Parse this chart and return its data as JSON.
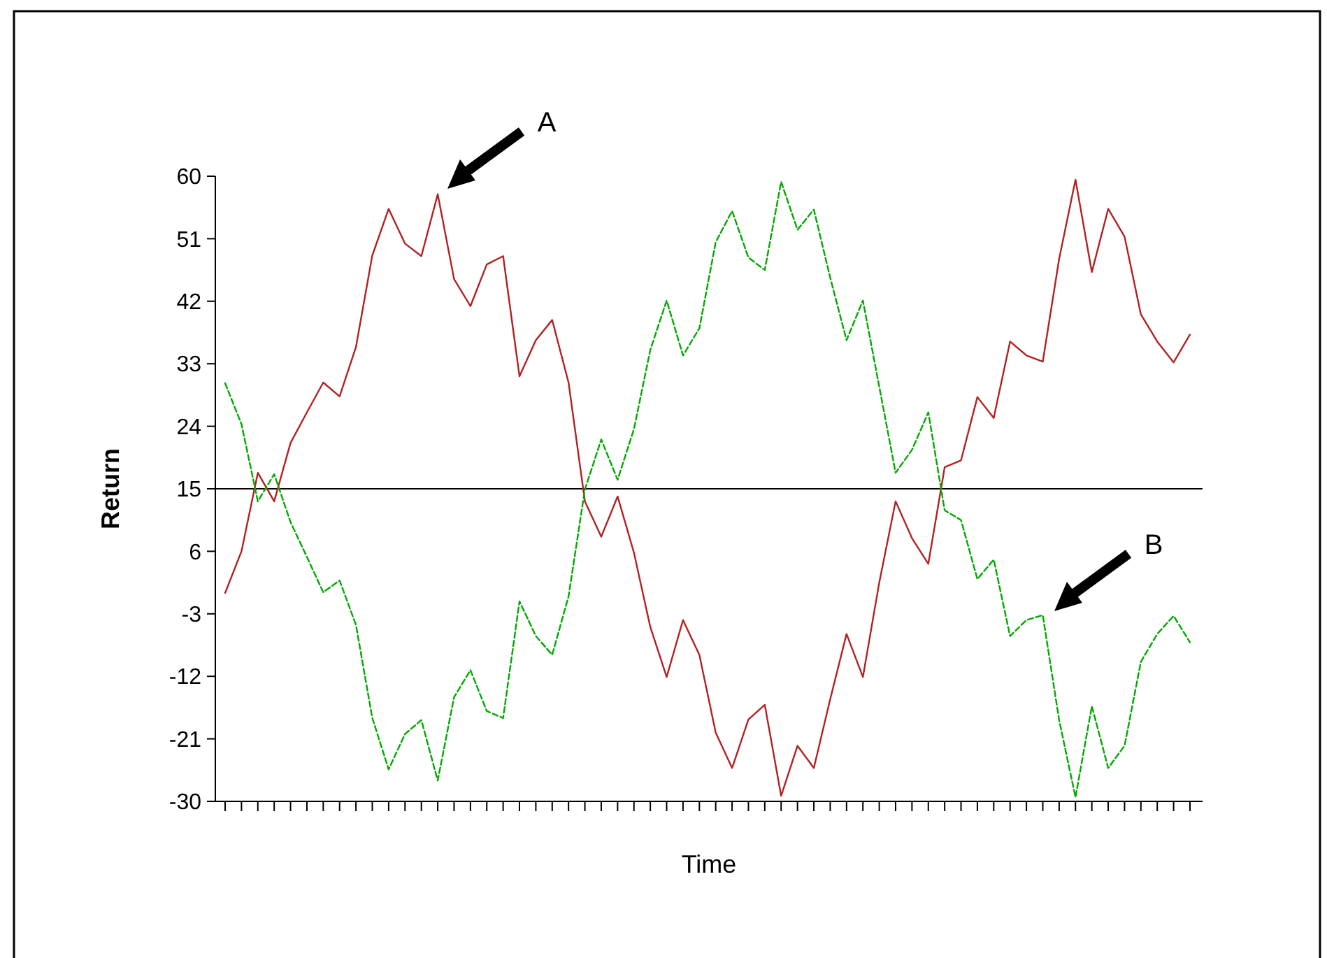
{
  "chart_data": {
    "type": "line",
    "xlabel": "Time",
    "ylabel": "Return",
    "categories": [
      null,
      null,
      null,
      null,
      null,
      null,
      null,
      null,
      null,
      null,
      null,
      null,
      null,
      null,
      null,
      null,
      null,
      null,
      null,
      null,
      null,
      null,
      null,
      null,
      null,
      null,
      null,
      null,
      null,
      null,
      null,
      null,
      null,
      null,
      null,
      null,
      null,
      null,
      null,
      null,
      null,
      null,
      null,
      null,
      null,
      null,
      null,
      null,
      null,
      null,
      null,
      null,
      null,
      null,
      null,
      null,
      null,
      null,
      null,
      null
    ],
    "series": [
      {
        "color": "#b22222",
        "line_style": "solid",
        "values": [
          0,
          6,
          17.3,
          13.2,
          21.6,
          26,
          30.3,
          28.3,
          35.4,
          48.6,
          55.3,
          50.3,
          48.5,
          57.4,
          45.2,
          41.3,
          47.3,
          48.5,
          31.2,
          36.4,
          39.3,
          30.3,
          13.2,
          8.1,
          13.9,
          5.8,
          -4.9,
          -12.1,
          -3.9,
          -8.9,
          -20.1,
          -25.2,
          -18.2,
          -16.1,
          -29.2,
          -22,
          -25.2,
          -15.3,
          -5.9,
          -12.1,
          1.5,
          13.2,
          7.9,
          4.2,
          18.1,
          19.1,
          28.2,
          25.2,
          36.2,
          34.2,
          33.3,
          48.1,
          59.5,
          46.2,
          55.3,
          51.3,
          40.1,
          36.2,
          33.2,
          37.2
        ]
      },
      {
        "color": "#00aa00",
        "line_style": "dashed",
        "values": [
          30.2,
          24.3,
          13.2,
          17.1,
          10.2,
          5.2,
          0.1,
          1.8,
          -4.6,
          -18,
          -25.4,
          -20.3,
          -18.3,
          -27,
          -15,
          -11.1,
          -17,
          -18,
          -1.2,
          -6.2,
          -8.9,
          -0.5,
          14.9,
          22.1,
          16.3,
          23.6,
          35,
          42.1,
          34.2,
          38.1,
          50.5,
          55,
          48.3,
          46.5,
          59.2,
          52.3,
          55.2,
          45.4,
          36.4,
          42.1,
          29.7,
          17.3,
          20.6,
          26,
          11.9,
          10.5,
          2,
          4.8,
          -6.2,
          -3.9,
          -3.2,
          -18.3,
          -29.4,
          -16.3,
          -25.2,
          -22,
          -9.9,
          -5.9,
          -3.3,
          -7.1
        ]
      }
    ],
    "ylim": [
      -30,
      60
    ],
    "yticks": [
      -30,
      -21,
      -12,
      -3,
      6,
      15,
      24,
      33,
      42,
      51,
      60
    ],
    "ref_lines": [
      {
        "axis": "y",
        "value": 15,
        "color": "#000000"
      }
    ],
    "annotations": [
      "A",
      "B"
    ],
    "tick_labels": "y",
    "grid": false,
    "marker": "none"
  }
}
